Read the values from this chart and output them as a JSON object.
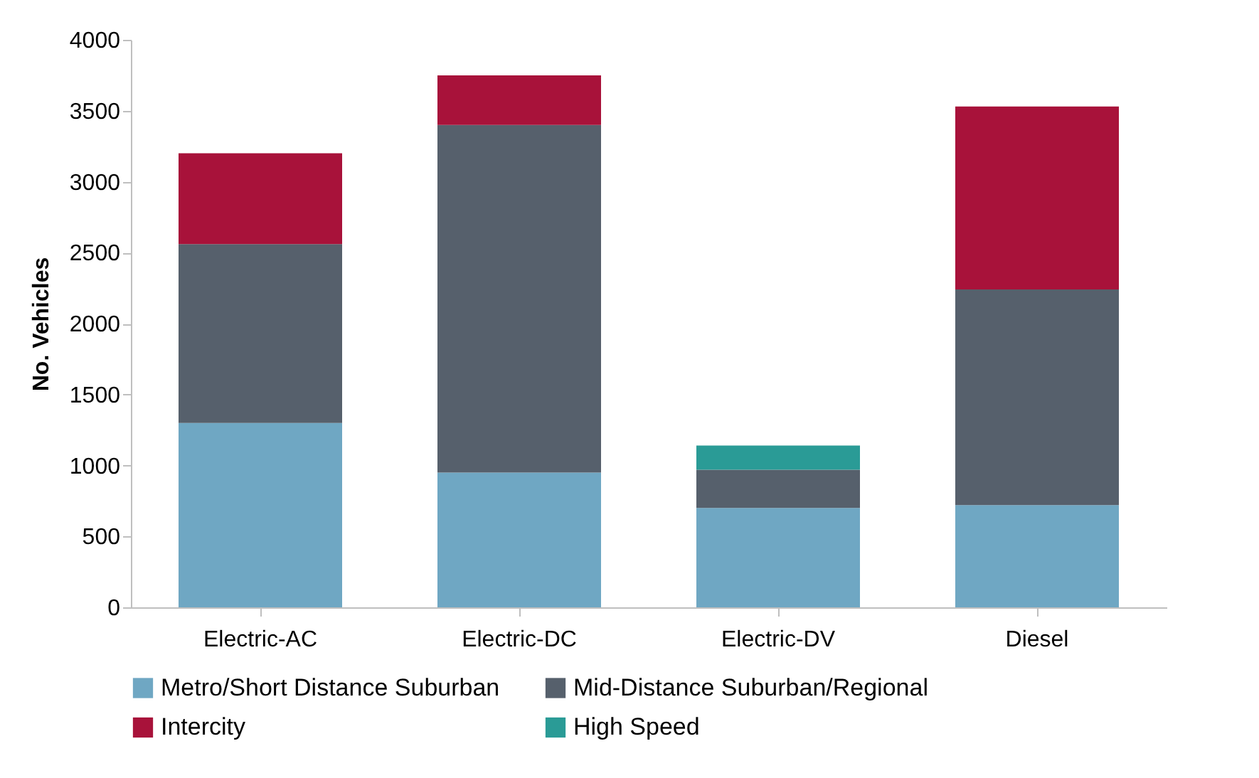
{
  "chart_data": {
    "type": "bar",
    "stacked": true,
    "ylabel": "No. Vehicles",
    "categories": [
      "Electric-AC",
      "Electric-DC",
      "Electric-DV",
      "Diesel"
    ],
    "series": [
      {
        "name": "Metro/Short Distance Suburban",
        "color": "#6fa7c3",
        "values": [
          1300,
          950,
          700,
          720
        ]
      },
      {
        "name": "Mid-Distance Suburban/Regional",
        "color": "#56606c",
        "values": [
          1260,
          2450,
          270,
          1520
        ]
      },
      {
        "name": "Intercity",
        "color": "#a8123a",
        "values": [
          640,
          350,
          0,
          1290
        ]
      },
      {
        "name": "High Speed",
        "color": "#2a9b96",
        "values": [
          0,
          0,
          170,
          0
        ]
      }
    ],
    "ylim": [
      0,
      4000
    ],
    "yticks": [
      0,
      500,
      1000,
      1500,
      2000,
      2500,
      3000,
      3500,
      4000
    ],
    "grid": false,
    "legend": "bottom"
  }
}
